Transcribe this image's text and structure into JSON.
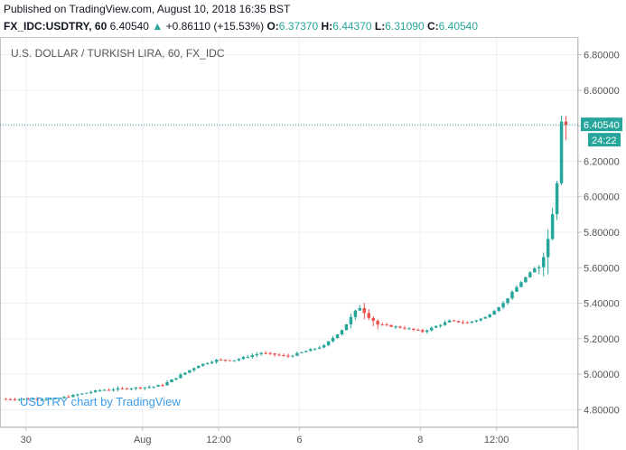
{
  "header": {
    "published": "Published on TradingView.com, August 10, 2018 16:35 BST",
    "symbol": "FX_IDC:USDTRY, 60",
    "last": "6.40540",
    "arrow": "▲",
    "change": "+0.86110 (+15.53%)",
    "o_label": "O:",
    "o_value": "6.37370",
    "h_label": "H:",
    "h_value": "6.44370",
    "l_label": "L:",
    "l_value": "6.31090",
    "c_label": "C:",
    "c_value": "6.40540"
  },
  "colors": {
    "up": "#26a69a",
    "down": "#ef5350",
    "grid": "#eceff2",
    "axis": "#bfc3c8",
    "last_line": "#26a69a"
  },
  "chart_data": {
    "type": "candlestick",
    "title": "U.S. DOLLAR / TURKISH LIRA, 60, FX_IDC",
    "watermark": "USDTRY chart by TradingView",
    "last_price_label": "6.40540",
    "countdown_label": "24:22",
    "last_price": 6.4054,
    "ylim": [
      4.7,
      6.9
    ],
    "y_ticks": [
      4.8,
      5.0,
      5.2,
      5.4,
      5.6,
      5.8,
      6.0,
      6.2,
      6.4,
      6.6,
      6.8
    ],
    "y_tick_labels": [
      "4.80000",
      "5.00000",
      "5.20000",
      "5.40000",
      "5.60000",
      "5.80000",
      "6.00000",
      "6.20000",
      "6.40000",
      "6.60000",
      "6.80000"
    ],
    "x_ticks": [
      {
        "label": "30",
        "index": 5
      },
      {
        "label": "Aug",
        "index": 31
      },
      {
        "label": "12:00",
        "index": 48
      },
      {
        "label": "6",
        "index": 66
      },
      {
        "label": "8",
        "index": 93
      },
      {
        "label": "12:00",
        "index": 110
      }
    ],
    "x_count": 126,
    "anchors": [
      [
        0,
        4.86
      ],
      [
        12,
        4.86
      ],
      [
        22,
        4.91
      ],
      [
        28,
        4.92
      ],
      [
        34,
        4.93
      ],
      [
        36,
        4.94
      ],
      [
        44,
        5.05
      ],
      [
        48,
        5.08
      ],
      [
        52,
        5.08
      ],
      [
        58,
        5.12
      ],
      [
        64,
        5.1
      ],
      [
        72,
        5.16
      ],
      [
        76,
        5.25
      ],
      [
        80,
        5.38
      ],
      [
        84,
        5.28
      ],
      [
        90,
        5.26
      ],
      [
        94,
        5.24
      ],
      [
        100,
        5.3
      ],
      [
        104,
        5.29
      ],
      [
        108,
        5.32
      ],
      [
        112,
        5.4
      ],
      [
        116,
        5.52
      ],
      [
        120,
        5.62
      ],
      [
        122,
        5.76
      ],
      [
        124,
        6.1
      ],
      [
        125,
        6.45
      ],
      [
        126,
        6.41
      ]
    ]
  }
}
